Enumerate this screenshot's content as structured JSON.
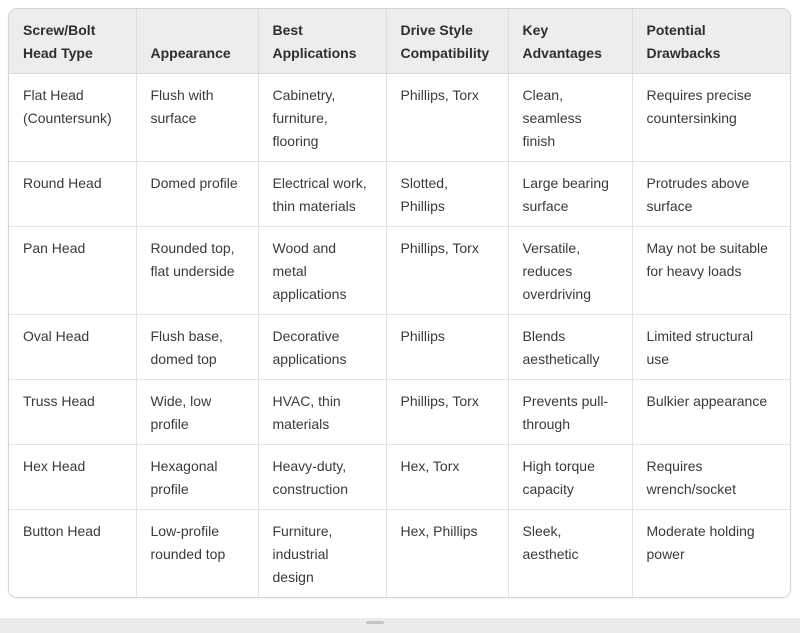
{
  "colors": {
    "header_bg": "#ededed",
    "card_border": "#d5d5d5",
    "grid_line": "#e3e3e3",
    "body_text": "#3a3a3a",
    "header_text": "#2e2e2e",
    "bottom_band_bg": "#ebebeb"
  },
  "table": {
    "columns": [
      "Screw/Bolt Head Type",
      "Appearance",
      "Best Applications",
      "Drive Style Compatibility",
      "Key Advantages",
      "Potential Drawbacks"
    ],
    "rows": [
      [
        "Flat Head (Countersunk)",
        "Flush with surface",
        "Cabinetry, furniture, flooring",
        "Phillips, Torx",
        "Clean, seamless finish",
        "Requires precise countersinking"
      ],
      [
        "Round Head",
        "Domed profile",
        "Electrical work, thin materials",
        "Slotted, Phillips",
        "Large bearing surface",
        "Protrudes above surface"
      ],
      [
        "Pan Head",
        "Rounded top, flat underside",
        "Wood and metal applications",
        "Phillips, Torx",
        "Versatile, reduces overdriving",
        "May not be suitable for heavy loads"
      ],
      [
        "Oval Head",
        "Flush base, domed top",
        "Decorative applications",
        "Phillips",
        "Blends aesthetically",
        "Limited structural use"
      ],
      [
        "Truss Head",
        "Wide, low profile",
        "HVAC, thin materials",
        "Phillips, Torx",
        "Prevents pull-through",
        "Bulkier appearance"
      ],
      [
        "Hex Head",
        "Hexagonal profile",
        "Heavy-duty, construction",
        "Hex, Torx",
        "High torque capacity",
        "Requires wrench/socket"
      ],
      [
        "Button Head",
        "Low-profile rounded top",
        "Furniture, industrial design",
        "Hex, Phillips",
        "Sleek, aesthetic",
        "Moderate holding power"
      ]
    ]
  }
}
